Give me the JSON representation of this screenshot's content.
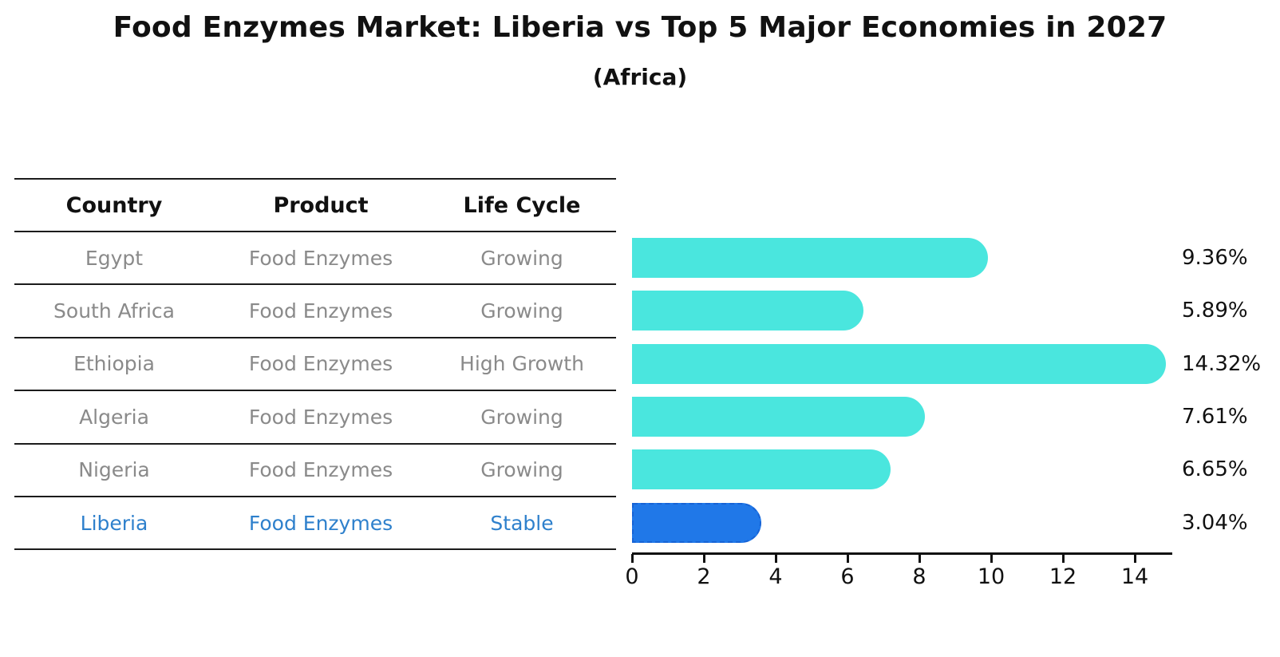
{
  "title": "Food Enzymes Market: Liberia vs Top 5 Major Economies in 2027",
  "subtitle": "(Africa)",
  "table": {
    "headers": [
      "Country",
      "Product",
      "Life Cycle"
    ],
    "rows": [
      {
        "country": "Egypt",
        "product": "Food Enzymes",
        "life_cycle": "Growing",
        "value_label": "9.36%",
        "highlight": false
      },
      {
        "country": "South Africa",
        "product": "Food Enzymes",
        "life_cycle": "Growing",
        "value_label": "5.89%",
        "highlight": false
      },
      {
        "country": "Ethiopia",
        "product": "Food Enzymes",
        "life_cycle": "High Growth",
        "value_label": "14.32%",
        "highlight": false
      },
      {
        "country": "Algeria",
        "product": "Food Enzymes",
        "life_cycle": "Growing",
        "value_label": "7.61%",
        "highlight": false
      },
      {
        "country": "Nigeria",
        "product": "Food Enzymes",
        "life_cycle": "Growing",
        "value_label": "6.65%",
        "highlight": false
      },
      {
        "country": "Liberia",
        "product": "Food Enzymes",
        "life_cycle": "Stable",
        "value_label": "3.04%",
        "highlight": true
      }
    ]
  },
  "chart_data": {
    "type": "bar",
    "orientation": "horizontal",
    "title": "Food Enzymes Market: Liberia vs Top 5 Major Economies in 2027 (Africa)",
    "categories": [
      "Egypt",
      "South Africa",
      "Ethiopia",
      "Algeria",
      "Nigeria",
      "Liberia"
    ],
    "values": [
      9.36,
      5.89,
      14.32,
      7.61,
      6.65,
      3.04
    ],
    "value_labels": [
      "9.36%",
      "5.89%",
      "14.32%",
      "7.61%",
      "6.65%",
      "3.04%"
    ],
    "unit": "percent",
    "xlim": [
      0,
      15
    ],
    "x_ticks": [
      0,
      2,
      4,
      6,
      8,
      10,
      12,
      14
    ],
    "grid": false,
    "legend": false,
    "highlight_category": "Liberia",
    "colors": {
      "bar_default": "#4ae6de",
      "bar_highlight": "#2078e8",
      "bar_highlight_border": "#1663d6",
      "row_text": "#8a8a8a",
      "highlight_text": "#2e80cc",
      "axis_text": "#111111"
    }
  }
}
